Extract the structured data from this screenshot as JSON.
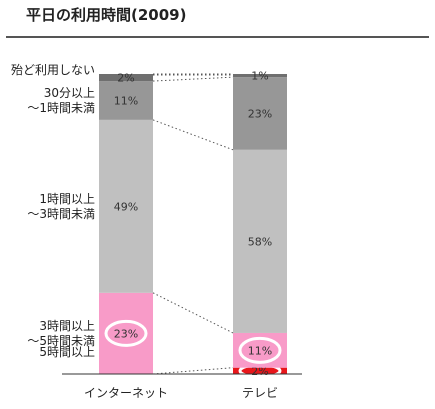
{
  "title": "平日の利用時間(2009)",
  "chart_data": {
    "type": "bar",
    "stacked": true,
    "title": "平日の利用時間(2009)",
    "categories": [
      "インターネット",
      "テレビ"
    ],
    "series": [
      {
        "name": "5時間以上",
        "values": [
          null,
          2
        ],
        "labels": [
          "",
          "2%"
        ],
        "color": "#e8161b"
      },
      {
        "name": "3時間以上\n～5時間未満",
        "values": [
          23,
          11
        ],
        "labels": [
          "23%",
          "11%"
        ],
        "color": "#f89bc8"
      },
      {
        "name": "1時間以上\n～3時間未満",
        "values": [
          49,
          58
        ],
        "labels": [
          "49%",
          "58%"
        ],
        "color": "#c0c0c0"
      },
      {
        "name": "30分以上\n～1時間未満",
        "values": [
          11,
          23
        ],
        "labels": [
          "11%",
          "23%"
        ],
        "color": "#979797"
      },
      {
        "name": "殆ど利用しない",
        "values": [
          2,
          1
        ],
        "labels": [
          "2%",
          "1%"
        ],
        "color": "#6f6f6f"
      }
    ],
    "highlighted": [
      "インターネット:5時間以上",
      "インターネット:3時間以上\n～5時間未満",
      "テレビ:3時間以上\n～5時間未満",
      "テレビ:5時間以上"
    ],
    "legend_position": "left",
    "connector_lines": true,
    "ylim": [
      0,
      100
    ]
  }
}
